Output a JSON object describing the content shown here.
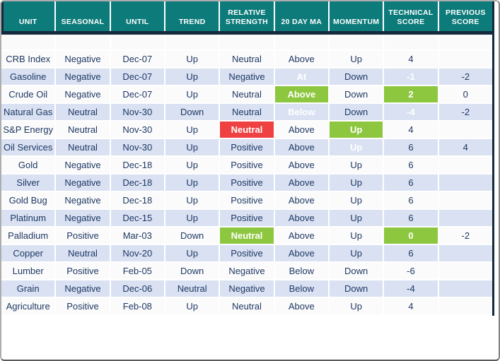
{
  "colors": {
    "header_bg": "#0E7B7B",
    "header_text": "#FFFFFF",
    "dark_line": "#15293D",
    "row_alt_bg": "#D9E1F2",
    "row_bg": "#FBFBFB",
    "text": "#1F3864",
    "highlight_green": "#8DC63F",
    "highlight_red": "#EF4142",
    "frame_border": "#ADADAD"
  },
  "chart_data": {
    "type": "table",
    "columns": [
      {
        "key": "unit",
        "label": "UNIT"
      },
      {
        "key": "seasonal",
        "label": "SEASONAL"
      },
      {
        "key": "until",
        "label": "UNTIL"
      },
      {
        "key": "trend",
        "label": "TREND"
      },
      {
        "key": "relative_strength",
        "label": "RELATIVE STRENGTH"
      },
      {
        "key": "ma20",
        "label": "20 DAY MA"
      },
      {
        "key": "momentum",
        "label": "MOMENTUM"
      },
      {
        "key": "technical_score",
        "label": "TECHNICAL SCORE"
      },
      {
        "key": "previous_score",
        "label": "PREVIOUS SCORE"
      }
    ],
    "rows": [
      {
        "unit": "CRB Index",
        "seasonal": "Negative",
        "until": "Dec-07",
        "trend": "Up",
        "relative_strength": "Neutral",
        "ma20": "Above",
        "momentum": "Up",
        "technical_score": "4",
        "previous_score": "",
        "highlights": {}
      },
      {
        "unit": "Gasoline",
        "seasonal": "Negative",
        "until": "Dec-07",
        "trend": "Up",
        "relative_strength": "Negative",
        "ma20": "At",
        "momentum": "Down",
        "technical_score": "-1",
        "previous_score": "-2",
        "highlights": {
          "ma20": "green",
          "technical_score": "green"
        }
      },
      {
        "unit": "Crude Oil",
        "seasonal": "Negative",
        "until": "Dec-07",
        "trend": "Up",
        "relative_strength": "Neutral",
        "ma20": "Above",
        "momentum": "Down",
        "technical_score": "2",
        "previous_score": "0",
        "highlights": {
          "ma20": "green",
          "technical_score": "green"
        }
      },
      {
        "unit": "Natural Gas",
        "seasonal": "Neutral",
        "until": "Nov-30",
        "trend": "Down",
        "relative_strength": "Neutral",
        "ma20": "Below",
        "momentum": "Down",
        "technical_score": "-4",
        "previous_score": "-2",
        "highlights": {
          "ma20": "red",
          "technical_score": "red"
        }
      },
      {
        "unit": "S&P Energy",
        "seasonal": "Neutral",
        "until": "Nov-30",
        "trend": "Up",
        "relative_strength": "Neutral",
        "ma20": "Above",
        "momentum": "Up",
        "technical_score": "4",
        "previous_score": "",
        "highlights": {
          "relative_strength": "red",
          "momentum": "green"
        }
      },
      {
        "unit": "Oil Services",
        "seasonal": "Neutral",
        "until": "Nov-30",
        "trend": "Up",
        "relative_strength": "Positive",
        "ma20": "Above",
        "momentum": "Up",
        "technical_score": "6",
        "previous_score": "4",
        "highlights": {
          "momentum": "green"
        }
      },
      {
        "unit": "Gold",
        "seasonal": "Negative",
        "until": "Dec-18",
        "trend": "Up",
        "relative_strength": "Positive",
        "ma20": "Above",
        "momentum": "Up",
        "technical_score": "6",
        "previous_score": "",
        "highlights": {}
      },
      {
        "unit": "Silver",
        "seasonal": "Negative",
        "until": "Dec-18",
        "trend": "Up",
        "relative_strength": "Positive",
        "ma20": "Above",
        "momentum": "Up",
        "technical_score": "6",
        "previous_score": "",
        "highlights": {}
      },
      {
        "unit": "Gold Bug",
        "seasonal": "Negative",
        "until": "Dec-18",
        "trend": "Up",
        "relative_strength": "Positive",
        "ma20": "Above",
        "momentum": "Up",
        "technical_score": "6",
        "previous_score": "",
        "highlights": {}
      },
      {
        "unit": "Platinum",
        "seasonal": "Negative",
        "until": "Dec-15",
        "trend": "Up",
        "relative_strength": "Positive",
        "ma20": "Above",
        "momentum": "Up",
        "technical_score": "6",
        "previous_score": "",
        "highlights": {}
      },
      {
        "unit": "Palladium",
        "seasonal": "Positive",
        "until": "Mar-03",
        "trend": "Down",
        "relative_strength": "Neutral",
        "ma20": "Above",
        "momentum": "Up",
        "technical_score": "0",
        "previous_score": "-2",
        "highlights": {
          "relative_strength": "green",
          "technical_score": "green"
        }
      },
      {
        "unit": "Copper",
        "seasonal": "Neutral",
        "until": "Nov-20",
        "trend": "Up",
        "relative_strength": "Positive",
        "ma20": "Above",
        "momentum": "Up",
        "technical_score": "6",
        "previous_score": "",
        "highlights": {}
      },
      {
        "unit": "Lumber",
        "seasonal": "Positive",
        "until": "Feb-05",
        "trend": "Down",
        "relative_strength": "Negative",
        "ma20": "Below",
        "momentum": "Down",
        "technical_score": "-6",
        "previous_score": "",
        "highlights": {}
      },
      {
        "unit": "Grain",
        "seasonal": "Negative",
        "until": "Dec-06",
        "trend": "Neutral",
        "relative_strength": "Negative",
        "ma20": "Below",
        "momentum": "Down",
        "technical_score": "-4",
        "previous_score": "",
        "highlights": {}
      },
      {
        "unit": "Agriculture",
        "seasonal": "Positive",
        "until": "Feb-08",
        "trend": "Up",
        "relative_strength": "Neutral",
        "ma20": "Above",
        "momentum": "Up",
        "technical_score": "4",
        "previous_score": "",
        "highlights": {}
      }
    ]
  }
}
